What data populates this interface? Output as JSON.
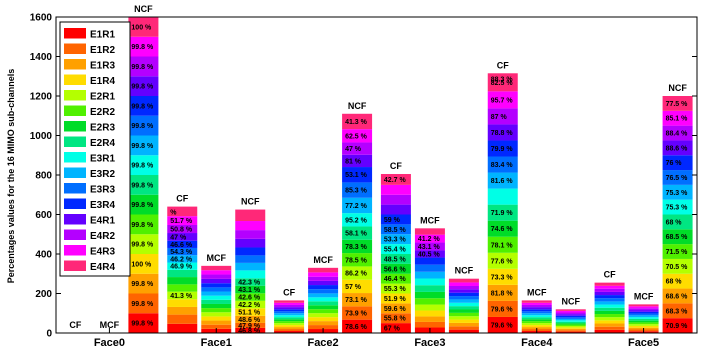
{
  "chart_data": {
    "type": "bar",
    "stacked": true,
    "title": "",
    "xlabel": "",
    "ylabel": "Percentages values for the 16 MIMO sub-channels",
    "ylim": [
      0,
      1600
    ],
    "yticks": [
      0,
      200,
      400,
      600,
      800,
      1000,
      1200,
      1400,
      1600
    ],
    "categories": [
      "Face0",
      "Face1",
      "Face2",
      "Face3",
      "Face4",
      "Face5"
    ],
    "bar_groups": [
      "CF",
      "MCF",
      "NCF"
    ],
    "legend": {
      "position": "top-left",
      "entries": [
        "E1R1",
        "E1R2",
        "E1R3",
        "E1R4",
        "E2R1",
        "E2R2",
        "E2R3",
        "E2R4",
        "E3R1",
        "E3R2",
        "E3R3",
        "E3R4",
        "E4R1",
        "E4R2",
        "E4R3",
        "E4R4"
      ]
    },
    "colors": [
      "#ff0000",
      "#ff6400",
      "#ffa000",
      "#ffdc00",
      "#b4ff00",
      "#50f000",
      "#00dc28",
      "#00e682",
      "#00ffe6",
      "#00b4ff",
      "#006eff",
      "#0028ff",
      "#6400ff",
      "#b400ff",
      "#ff00ff",
      "#ff2878"
    ],
    "bars": [
      {
        "category": "Face0",
        "group": "CF",
        "total": 0,
        "values": [
          0,
          0,
          0,
          0,
          0,
          0,
          0,
          0,
          0,
          0,
          0,
          0,
          0,
          0,
          0,
          0
        ],
        "labels": []
      },
      {
        "category": "Face0",
        "group": "MCF",
        "total": 0,
        "values": [
          0,
          0,
          0,
          0,
          0,
          0,
          0,
          0,
          0,
          0,
          0,
          0,
          0,
          0,
          0,
          0
        ],
        "labels": []
      },
      {
        "category": "Face0",
        "group": "NCF",
        "total": 1600,
        "values": [
          100,
          100,
          100,
          100,
          100,
          100,
          100,
          100,
          100,
          100,
          100,
          100,
          100,
          100,
          100,
          100
        ],
        "labels": [
          "99.8",
          "99.8",
          "99.8",
          "100",
          "99.8",
          "99.8",
          "99.8",
          "99.8",
          "99.8",
          "99.8",
          "99.8",
          "99.8",
          "99.8",
          "99.8",
          "99.8",
          "100"
        ]
      },
      {
        "category": "Face1",
        "group": "CF",
        "total": 640,
        "values": [
          48,
          48,
          40,
          40,
          40,
          38,
          38,
          38,
          38,
          38,
          38,
          38,
          40,
          42,
          46,
          50
        ],
        "labels": [
          "",
          "",
          "",
          "",
          "41.3",
          "",
          "",
          "",
          "46.9",
          "46.2",
          "54.3",
          "46.6",
          "47",
          "50.8",
          "51.7",
          ""
        ]
      },
      {
        "category": "Face1",
        "group": "MCF",
        "total": 340,
        "values": [
          21,
          21,
          21,
          21,
          21,
          21,
          21,
          21,
          21,
          21,
          21,
          21,
          22,
          22,
          22,
          22
        ],
        "labels": []
      },
      {
        "category": "Face1",
        "group": "NCF",
        "total": 625,
        "values": [
          26,
          25,
          36,
          38,
          38,
          38,
          38,
          38,
          40,
          38,
          38,
          40,
          44,
          44,
          46,
          58
        ],
        "labels": [
          "46.8",
          "47.9",
          "48.6",
          "51.1",
          "42.2",
          "42.6",
          "43.1",
          "42.3",
          "",
          "",
          "",
          "",
          "",
          "",
          "",
          ""
        ]
      },
      {
        "category": "Face2",
        "group": "CF",
        "total": 165,
        "values": [
          10,
          10,
          10,
          10,
          10,
          10,
          10,
          10,
          10,
          10,
          10,
          10,
          11,
          11,
          11,
          12
        ],
        "labels": []
      },
      {
        "category": "Face2",
        "group": "MCF",
        "total": 330,
        "values": [
          20,
          20,
          20,
          20,
          20,
          20,
          20,
          20,
          20,
          20,
          21,
          21,
          21,
          21,
          22,
          23
        ],
        "labels": []
      },
      {
        "category": "Face2",
        "group": "NCF",
        "total": 1110,
        "values": [
          65,
          65,
          65,
          65,
          65,
          65,
          65,
          65,
          65,
          75,
          75,
          75,
          60,
          60,
          65,
          75
        ],
        "labels": [
          "78.6",
          "73.9",
          "73.1",
          "57",
          "86.2",
          "78.5",
          "78.3",
          "58.1",
          "95.2",
          "77.2",
          "85.3",
          "53.1",
          "81",
          "47",
          "62.5",
          "41.3"
        ]
      },
      {
        "category": "Face3",
        "group": "CF",
        "total": 805,
        "values": [
          50,
          50,
          50,
          50,
          50,
          50,
          50,
          50,
          50,
          50,
          50,
          50,
          50,
          50,
          50,
          55
        ],
        "labels": [
          "67",
          "55.8",
          "59.6",
          "51.9",
          "55.3",
          "46.4",
          "56.6",
          "48.5",
          "55.4",
          "53.3",
          "58.5",
          "59",
          "",
          "",
          "",
          "42.7"
        ]
      },
      {
        "category": "Face3",
        "group": "MCF",
        "total": 530,
        "values": [
          28,
          28,
          28,
          30,
          30,
          32,
          32,
          34,
          34,
          34,
          36,
          36,
          36,
          40,
          40,
          32
        ],
        "labels": [
          "",
          "",
          "",
          "",
          "",
          "",
          "",
          "",
          "",
          "",
          "",
          "",
          "40.5",
          "43.1",
          "41.2",
          ""
        ]
      },
      {
        "category": "Face3",
        "group": "NCF",
        "total": 275,
        "values": [
          17,
          17,
          17,
          17,
          17,
          17,
          17,
          17,
          17,
          17,
          17,
          17,
          17,
          17,
          18,
          19
        ],
        "labels": []
      },
      {
        "category": "Face4",
        "group": "CF",
        "total": 1315,
        "values": [
          80,
          80,
          80,
          80,
          80,
          80,
          80,
          80,
          80,
          80,
          80,
          80,
          80,
          80,
          85,
          90
        ],
        "labels": [
          "79.6",
          "79.6",
          "81.8",
          "73.3",
          "77.6",
          "78.1",
          "74.6",
          "71.9",
          "",
          "81.6",
          "83.4",
          "79.9",
          "78.8",
          "87",
          "95.7",
          "82.5"
        ]
      },
      {
        "category": "Face4",
        "group": "MCF",
        "total": 165,
        "values": [
          10,
          10,
          10,
          10,
          10,
          10,
          10,
          10,
          10,
          10,
          10,
          10,
          11,
          11,
          11,
          12
        ],
        "labels": []
      },
      {
        "category": "Face4",
        "group": "NCF",
        "total": 120,
        "values": [
          7,
          7,
          7,
          7,
          7,
          7,
          7,
          7,
          7,
          7,
          8,
          8,
          8,
          8,
          8,
          8
        ],
        "labels": []
      },
      {
        "category": "Face5",
        "group": "CF",
        "total": 255,
        "values": [
          16,
          16,
          16,
          16,
          16,
          16,
          16,
          16,
          16,
          16,
          16,
          16,
          16,
          16,
          15,
          16
        ],
        "labels": []
      },
      {
        "category": "Face5",
        "group": "MCF",
        "total": 145,
        "values": [
          9,
          9,
          9,
          9,
          9,
          9,
          9,
          9,
          9,
          9,
          9,
          9,
          9,
          9,
          10,
          10
        ],
        "labels": []
      },
      {
        "category": "Face5",
        "group": "NCF",
        "total": 1200,
        "values": [
          75,
          75,
          75,
          75,
          75,
          75,
          75,
          75,
          75,
          75,
          75,
          75,
          75,
          75,
          75,
          75
        ],
        "labels": [
          "70.9",
          "68.3",
          "68.6",
          "68",
          "70.5",
          "71.5",
          "68.5",
          "68",
          "75.3",
          "75.3",
          "76.5",
          "76",
          "88.6",
          "88.4",
          "85.1",
          "77.5"
        ]
      }
    ],
    "extra_labels": [
      {
        "category": "Face1",
        "group": "CF",
        "label": "%"
      },
      {
        "category": "Face4",
        "group": "CF",
        "label": "88.3 %"
      }
    ],
    "grid": false
  }
}
